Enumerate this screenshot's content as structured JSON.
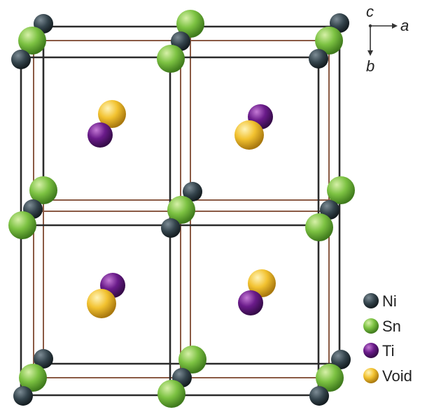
{
  "axes": {
    "c_label": "c",
    "a_label": "a",
    "b_label": "b"
  },
  "legend": [
    {
      "label": "Ni",
      "color": "#2f3e46",
      "icon": "ni-atom-icon"
    },
    {
      "label": "Sn",
      "color": "#7cc242",
      "icon": "sn-atom-icon"
    },
    {
      "label": "Ti",
      "color": "#6a1b8a",
      "icon": "ti-atom-icon"
    },
    {
      "label": "Void",
      "color": "#f2c230",
      "icon": "void-site-icon"
    }
  ],
  "colors": {
    "frame_dark": "#2a2a2a",
    "frame_brown": "#8a5a44"
  }
}
